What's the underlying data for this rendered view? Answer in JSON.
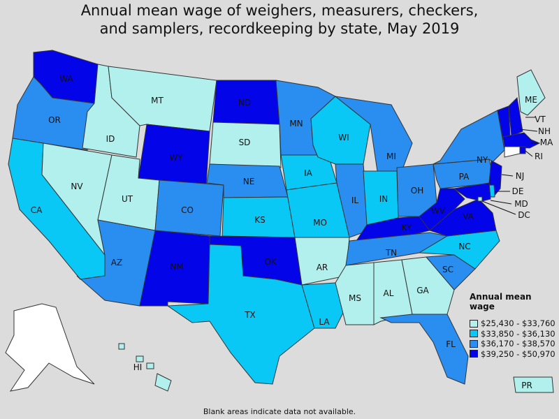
{
  "title_lines": [
    "Annual mean wage of weighers, measurers, checkers,",
    "and samplers, recordkeeping by state, May 2019"
  ],
  "legend": {
    "title": "Annual mean wage",
    "items": [
      {
        "label": "$25,430 - $33,760",
        "color": "#b2f0ee"
      },
      {
        "label": "$33,850 - $36,130",
        "color": "#0ac8f5"
      },
      {
        "label": "$36,170 - $38,570",
        "color": "#2a8ef0"
      },
      {
        "label": "$39,250 - $50,970",
        "color": "#0404e8"
      }
    ]
  },
  "footnote": "Blank areas indicate data not available.",
  "no_data_color": "#ffffff",
  "states": {
    "WA": 4,
    "OR": 3,
    "CA": 2,
    "NV": 1,
    "ID": 1,
    "MT": 1,
    "WY": 4,
    "UT": 1,
    "AZ": 3,
    "CO": 3,
    "NM": 4,
    "ND": 4,
    "SD": 1,
    "NE": 3,
    "KS": 2,
    "OK": 4,
    "TX": 2,
    "MN": 3,
    "IA": 2,
    "MO": 2,
    "AR": 1,
    "LA": 2,
    "WI": 2,
    "IL": 3,
    "MI": 3,
    "IN": 2,
    "OH": 3,
    "KY": 4,
    "TN": 3,
    "MS": 1,
    "AL": 1,
    "GA": 1,
    "FL": 3,
    "SC": 3,
    "NC": 2,
    "VA": 4,
    "WV": 4,
    "PA": 3,
    "NY": 3,
    "NJ": 4,
    "DE": 2,
    "MD": 4,
    "DC": 1,
    "ME": 1,
    "VT": 4,
    "NH": 4,
    "MA": 4,
    "RI": 4,
    "CT": 0,
    "AK": 0,
    "HI": 1,
    "PR": 1
  }
}
